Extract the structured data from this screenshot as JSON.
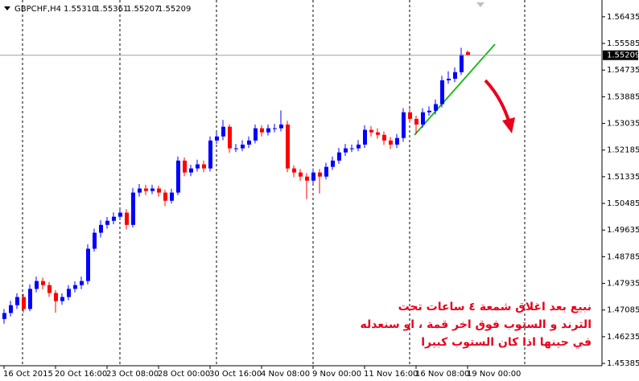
{
  "chart_data": {
    "type": "candlestick",
    "title": "GBPCHF,H4",
    "header_values": [
      "1.55310",
      "1.55361",
      "1.55207",
      "1.55209"
    ],
    "categories": [
      "16 Oct 2015",
      null,
      null,
      null,
      null,
      null,
      null,
      null,
      "20 Oct 16:00",
      null,
      null,
      null,
      null,
      null,
      null,
      null,
      "23 Oct 08:00",
      null,
      null,
      null,
      null,
      null,
      null,
      null,
      "28 Oct 00:00",
      null,
      null,
      null,
      null,
      null,
      null,
      null,
      "30 Oct 16:00",
      null,
      null,
      null,
      null,
      null,
      null,
      null,
      "4 Nov 08:00",
      null,
      null,
      null,
      null,
      null,
      null,
      null,
      "9 Nov 00:00",
      null,
      null,
      null,
      null,
      null,
      null,
      null,
      "11 Nov 16:00",
      null,
      null,
      null,
      null,
      null,
      null,
      null,
      "16 Nov 08:00",
      null,
      null,
      null,
      null,
      null,
      null,
      null,
      "19 Nov 00:00"
    ],
    "open": [
      1.468,
      1.4699,
      1.4724,
      1.475,
      1.4712,
      1.4776,
      1.4801,
      1.4788,
      1.4763,
      1.4737,
      1.475,
      1.4776,
      1.4788,
      1.4801,
      1.4904,
      1.4955,
      1.498,
      1.4993,
      1.5006,
      1.5019,
      1.498,
      1.5083,
      1.5096,
      1.5088,
      1.5096,
      1.5083,
      1.5057,
      1.5083,
      1.5185,
      1.5147,
      1.516,
      1.5173,
      1.516,
      1.5249,
      1.5262,
      1.5293,
      1.5224,
      1.5224,
      1.5236,
      1.5249,
      1.5288,
      1.5275,
      1.5288,
      1.5288,
      1.53,
      1.516,
      1.5147,
      1.5134,
      1.5121,
      1.5147,
      1.5134,
      1.5165,
      1.5185,
      1.5211,
      1.5224,
      1.5224,
      1.5236,
      1.5283,
      1.5275,
      1.5267,
      1.5249,
      1.5236,
      1.5257,
      1.5339,
      1.5318,
      1.53,
      1.5339,
      1.5344,
      1.5365,
      1.5441,
      1.5446,
      1.5467,
      1.5531
    ],
    "high": [
      1.4712,
      1.4738,
      1.4762,
      1.476,
      1.479,
      1.4815,
      1.4812,
      1.4798,
      1.4772,
      1.4762,
      1.4788,
      1.48,
      1.4815,
      1.4918,
      1.4968,
      1.4995,
      1.5005,
      1.502,
      1.5032,
      1.503,
      1.5098,
      1.511,
      1.5108,
      1.5108,
      1.5105,
      1.5092,
      1.5095,
      1.5198,
      1.5195,
      1.5172,
      1.5188,
      1.5185,
      1.5262,
      1.5278,
      1.5315,
      1.53,
      1.5238,
      1.525,
      1.5262,
      1.53,
      1.5298,
      1.53,
      1.5302,
      1.5345,
      1.5312,
      1.517,
      1.5158,
      1.5145,
      1.516,
      1.5158,
      1.5178,
      1.5198,
      1.5225,
      1.5238,
      1.5236,
      1.525,
      1.5298,
      1.5295,
      1.5288,
      1.5278,
      1.526,
      1.527,
      1.5352,
      1.535,
      1.5328,
      1.5352,
      1.5358,
      1.538,
      1.5455,
      1.547,
      1.5482,
      1.5545,
      1.55361
    ],
    "low": [
      1.4665,
      1.4688,
      1.4712,
      1.47,
      1.4705,
      1.4765,
      1.4775,
      1.475,
      1.47,
      1.4725,
      1.474,
      1.4765,
      1.4775,
      1.479,
      1.4895,
      1.494,
      1.4968,
      1.4982,
      1.4995,
      1.4965,
      1.4972,
      1.507,
      1.5075,
      1.5078,
      1.507,
      1.504,
      1.5048,
      1.5075,
      1.5135,
      1.5135,
      1.515,
      1.5148,
      1.515,
      1.5238,
      1.525,
      1.521,
      1.5212,
      1.5215,
      1.5225,
      1.524,
      1.5262,
      1.5265,
      1.5275,
      1.5278,
      1.5148,
      1.5132,
      1.512,
      1.5062,
      1.511,
      1.508,
      1.5125,
      1.5155,
      1.5175,
      1.52,
      1.5212,
      1.5215,
      1.5225,
      1.5262,
      1.5255,
      1.5235,
      1.5222,
      1.5225,
      1.5245,
      1.5305,
      1.527,
      1.529,
      1.5328,
      1.5332,
      1.5355,
      1.543,
      1.5435,
      1.5458,
      1.55207
    ],
    "close": [
      1.4699,
      1.4724,
      1.475,
      1.4712,
      1.4776,
      1.4801,
      1.4788,
      1.4763,
      1.4737,
      1.475,
      1.4776,
      1.4788,
      1.4801,
      1.4904,
      1.4955,
      1.498,
      1.4993,
      1.5006,
      1.5019,
      1.498,
      1.5083,
      1.5096,
      1.5088,
      1.5096,
      1.5083,
      1.5057,
      1.5083,
      1.5185,
      1.5147,
      1.516,
      1.5173,
      1.516,
      1.5249,
      1.5262,
      1.5293,
      1.5224,
      1.5224,
      1.5236,
      1.5249,
      1.5288,
      1.5275,
      1.5288,
      1.5288,
      1.53,
      1.516,
      1.5147,
      1.5134,
      1.5121,
      1.5147,
      1.5134,
      1.5165,
      1.5185,
      1.5211,
      1.5224,
      1.5224,
      1.5236,
      1.5283,
      1.5275,
      1.5267,
      1.5249,
      1.5236,
      1.5257,
      1.5339,
      1.5318,
      1.53,
      1.5339,
      1.5344,
      1.5365,
      1.5441,
      1.5446,
      1.5467,
      1.5523,
      1.55209
    ],
    "up_color": "#0000ff",
    "down_color": "#ff0000",
    "ylim": [
      1.4531,
      1.5697
    ],
    "yticks": [
      1.56435,
      1.55585,
      1.54735,
      1.53885,
      1.53035,
      1.52185,
      1.51335,
      1.50485,
      1.49635,
      1.48785,
      1.47935,
      1.47085,
      1.46235,
      1.45385
    ],
    "annotations": [
      "نبيع بعد اغلاق شمعة ٤ ساعات تحت",
      "الترند و الستوب فوق اخر قمة ، او سنعدله",
      "في حينها اذا كان الستوب كبيرا"
    ]
  }
}
